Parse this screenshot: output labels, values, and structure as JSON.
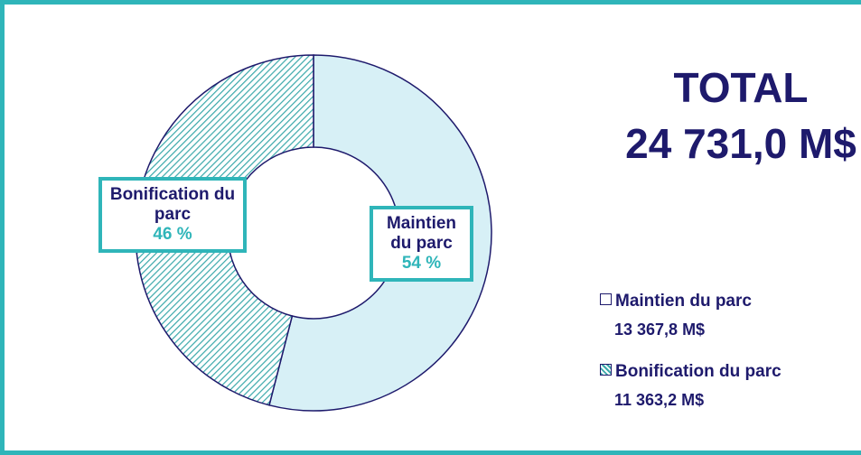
{
  "chart_data": {
    "type": "donut",
    "categories": [
      "Maintien du parc",
      "Bonification du parc"
    ],
    "values": [
      54,
      46
    ],
    "value_labels": [
      "54 %",
      "46 %"
    ],
    "colors": [
      "#d7f0f6",
      "#3aa8aa"
    ],
    "fills": [
      "solid",
      "hatch"
    ],
    "amount_labels": [
      "13 367,8 M$",
      "11 363,2 M$"
    ],
    "total_label": "TOTAL",
    "total": "24 731,0 M$"
  }
}
